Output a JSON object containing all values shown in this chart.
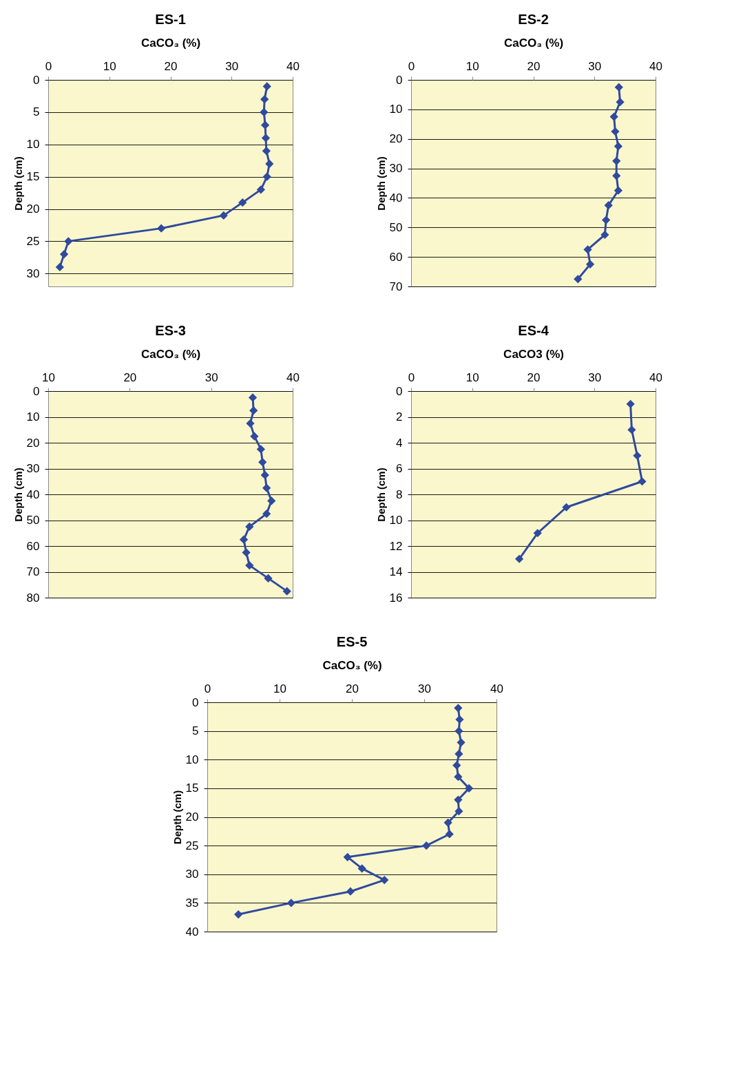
{
  "chart_data": [
    {
      "type": "line",
      "title": "ES-1",
      "xlabel": "CaCO₃ (%)",
      "ylabel": "Depth (cm)",
      "xlim": [
        0,
        40
      ],
      "xticks": [
        0,
        10,
        20,
        30,
        40
      ],
      "ylim": [
        32,
        0
      ],
      "yticks": [
        0,
        5,
        10,
        15,
        20,
        25,
        30
      ],
      "grid": "y",
      "marker": "diamond",
      "line_style": "solid",
      "series": [
        {
          "color": "#2f4a9e",
          "x": [
            35.8,
            35.4,
            35.3,
            35.5,
            35.6,
            35.7,
            36.2,
            35.8,
            34.8,
            31.8,
            28.7,
            18.5,
            3.3,
            2.6,
            1.9
          ],
          "values": [
            1,
            3,
            5,
            7,
            9,
            11,
            13,
            15,
            17,
            19,
            21,
            23,
            25,
            27,
            29
          ]
        }
      ]
    },
    {
      "type": "line",
      "title": "ES-2",
      "xlabel": "CaCO₃ (%)",
      "ylabel": "Depth (cm)",
      "xlim": [
        0,
        40
      ],
      "xticks": [
        0,
        10,
        20,
        30,
        40
      ],
      "ylim": [
        70,
        0
      ],
      "yticks": [
        0,
        10,
        20,
        30,
        40,
        50,
        60,
        70
      ],
      "grid": "y",
      "marker": "diamond",
      "line_style": "solid",
      "series": [
        {
          "color": "#2f4a9e",
          "x": [
            34.0,
            34.2,
            33.2,
            33.4,
            33.9,
            33.6,
            33.6,
            33.9,
            32.3,
            31.9,
            31.7,
            28.9,
            29.3,
            27.3
          ],
          "values": [
            2.5,
            7.5,
            12.5,
            17.5,
            22.5,
            27.5,
            32.5,
            37.5,
            42.5,
            47.5,
            52.5,
            57.5,
            62.5,
            67.5
          ]
        }
      ]
    },
    {
      "type": "line",
      "title": "ES-3",
      "xlabel": "CaCO₃ (%)",
      "ylabel": "Depth (cm)",
      "xlim": [
        10,
        40
      ],
      "xticks": [
        10,
        20,
        30,
        40
      ],
      "ylim": [
        80,
        0
      ],
      "yticks": [
        0,
        10,
        20,
        30,
        40,
        50,
        60,
        70,
        80
      ],
      "grid": "y",
      "marker": "diamond",
      "line_style": "solid",
      "series": [
        {
          "color": "#2f4a9e",
          "x": [
            35.1,
            35.2,
            34.8,
            35.3,
            36.1,
            36.3,
            36.6,
            36.8,
            37.4,
            36.8,
            34.7,
            34.0,
            34.3,
            34.7,
            37.0,
            39.3
          ],
          "values": [
            2.5,
            7.5,
            12.5,
            17.5,
            22.5,
            27.5,
            32.5,
            37.5,
            42.5,
            47.5,
            52.5,
            57.5,
            62.5,
            67.5,
            72.5,
            77.5
          ]
        }
      ]
    },
    {
      "type": "line",
      "title": "ES-4",
      "xlabel": "CaCO3 (%)",
      "ylabel": "Depth (cm)",
      "xlim": [
        0,
        40
      ],
      "xticks": [
        0,
        10,
        20,
        30,
        40
      ],
      "ylim": [
        16,
        0
      ],
      "yticks": [
        0,
        2,
        4,
        6,
        8,
        10,
        12,
        14,
        16
      ],
      "grid": "y",
      "marker": "diamond",
      "line_style": "solid",
      "series": [
        {
          "color": "#2f4a9e",
          "x": [
            35.9,
            36.1,
            37.0,
            37.8,
            25.4,
            20.7,
            17.7
          ],
          "values": [
            1,
            3,
            5,
            7,
            9,
            11,
            13
          ]
        }
      ]
    },
    {
      "type": "line",
      "title": "ES-5",
      "xlabel": "CaCO₃ (%)",
      "ylabel": "Depth (cm)",
      "xlim": [
        0,
        40
      ],
      "xticks": [
        0,
        10,
        20,
        30,
        40
      ],
      "ylim": [
        40,
        0
      ],
      "yticks": [
        0,
        5,
        10,
        15,
        20,
        25,
        30,
        35,
        40
      ],
      "grid": "y",
      "marker": "diamond",
      "line_style": "solid",
      "series": [
        {
          "color": "#2f4a9e",
          "x": [
            34.7,
            34.9,
            34.8,
            35.1,
            34.8,
            34.5,
            34.7,
            36.2,
            34.7,
            34.8,
            33.3,
            33.5,
            30.3,
            19.4,
            21.4,
            24.5,
            19.8,
            11.6,
            4.3
          ],
          "values": [
            1,
            3,
            5,
            7,
            9,
            11,
            13,
            15,
            17,
            19,
            21,
            23,
            25,
            27,
            29,
            31,
            33,
            35,
            37
          ]
        }
      ]
    }
  ]
}
